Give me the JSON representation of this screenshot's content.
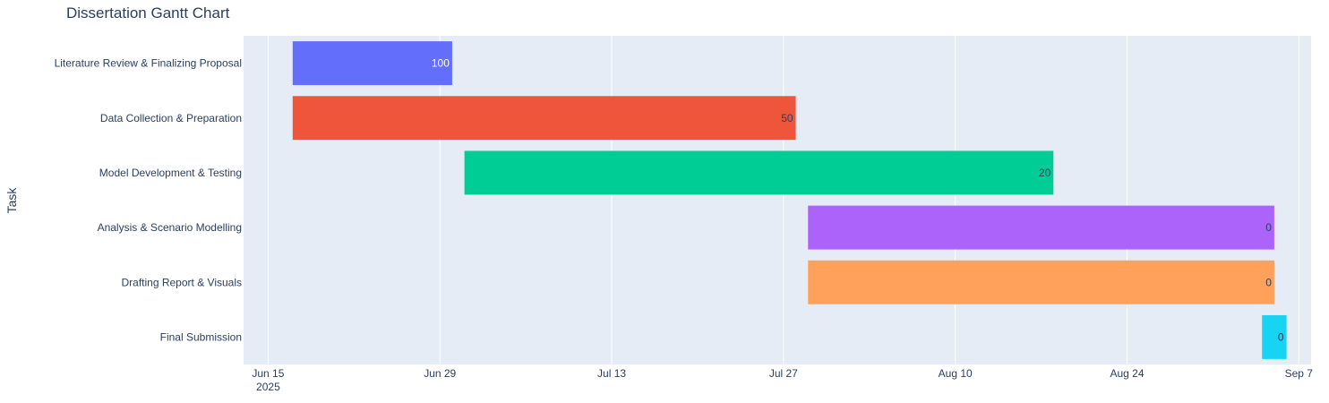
{
  "chart_data": {
    "type": "gantt",
    "title": "Dissertation Gantt Chart",
    "xlabel": "",
    "ylabel": "Task",
    "grid": true,
    "legend": "none",
    "x_range": [
      "2025-06-13",
      "2025-09-08"
    ],
    "x_ticks": [
      {
        "date": "2025-06-15",
        "label": "Jun 15",
        "sublabel": "2025"
      },
      {
        "date": "2025-06-29",
        "label": "Jun 29",
        "sublabel": ""
      },
      {
        "date": "2025-07-13",
        "label": "Jul 13",
        "sublabel": ""
      },
      {
        "date": "2025-07-27",
        "label": "Jul 27",
        "sublabel": ""
      },
      {
        "date": "2025-08-10",
        "label": "Aug 10",
        "sublabel": ""
      },
      {
        "date": "2025-08-24",
        "label": "Aug 24",
        "sublabel": ""
      },
      {
        "date": "2025-09-07",
        "label": "Sep 7",
        "sublabel": ""
      }
    ],
    "tasks": [
      {
        "name": "Literature Review & Finalizing Proposal",
        "start": "2025-06-17",
        "end": "2025-06-30",
        "label": "100",
        "color": "#636efa",
        "label_color": "#ffffff"
      },
      {
        "name": "Data Collection & Preparation",
        "start": "2025-06-17",
        "end": "2025-07-28",
        "label": "50",
        "color": "#ef553b",
        "label_color": "#2a3f5f"
      },
      {
        "name": "Model Development & Testing",
        "start": "2025-07-01",
        "end": "2025-08-18",
        "label": "20",
        "color": "#00cc96",
        "label_color": "#2a3f5f"
      },
      {
        "name": "Analysis & Scenario Modelling",
        "start": "2025-07-29",
        "end": "2025-09-05",
        "label": "0",
        "color": "#ab63fa",
        "label_color": "#2a3f5f"
      },
      {
        "name": "Drafting Report & Visuals",
        "start": "2025-07-29",
        "end": "2025-09-05",
        "label": "0",
        "color": "#ffa15a",
        "label_color": "#2a3f5f"
      },
      {
        "name": "Final Submission",
        "start": "2025-09-04",
        "end": "2025-09-06",
        "label": "0",
        "color": "#19d3f3",
        "label_color": "#2a3f5f"
      }
    ]
  }
}
